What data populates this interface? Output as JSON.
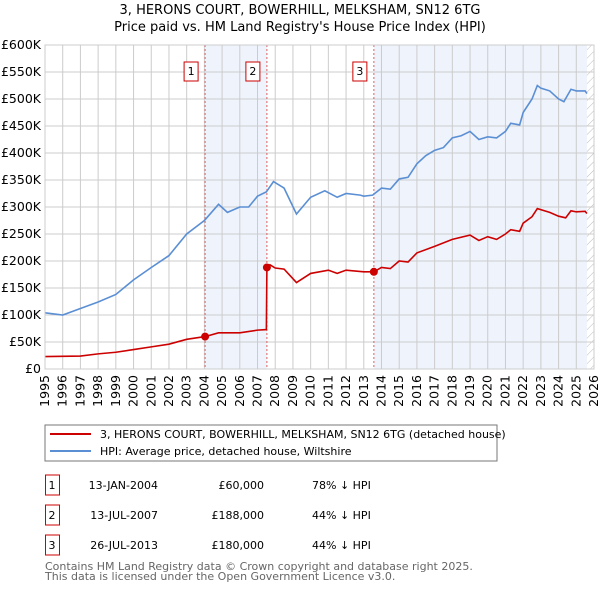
{
  "colors": {
    "property": "#cc0000",
    "hpi": "#5b8fd4",
    "shade": "#eef3fc",
    "marker_border": "#cc0000"
  },
  "chart_data": {
    "type": "line",
    "title": "3, HERONS COURT, BOWERHILL, MELKSHAM, SN12 6TG",
    "subtitle": "Price paid vs. HM Land Registry's House Price Index (HPI)",
    "xlim": [
      1995,
      2026
    ],
    "ylim": [
      0,
      600000
    ],
    "x_ticks": [
      "1995",
      "1996",
      "1997",
      "1998",
      "1999",
      "2000",
      "2001",
      "2002",
      "2003",
      "2004",
      "2005",
      "2006",
      "2007",
      "2008",
      "2009",
      "2010",
      "2011",
      "2012",
      "2013",
      "2014",
      "2015",
      "2016",
      "2017",
      "2018",
      "2019",
      "2020",
      "2021",
      "2022",
      "2023",
      "2024",
      "2025",
      "2026"
    ],
    "y_ticks": [
      {
        "v": 0,
        "label": "£0"
      },
      {
        "v": 50000,
        "label": "£50K"
      },
      {
        "v": 100000,
        "label": "£100K"
      },
      {
        "v": 150000,
        "label": "£150K"
      },
      {
        "v": 200000,
        "label": "£200K"
      },
      {
        "v": 250000,
        "label": "£250K"
      },
      {
        "v": 300000,
        "label": "£300K"
      },
      {
        "v": 350000,
        "label": "£350K"
      },
      {
        "v": 400000,
        "label": "£400K"
      },
      {
        "v": 450000,
        "label": "£450K"
      },
      {
        "v": 500000,
        "label": "£500K"
      },
      {
        "v": 550000,
        "label": "£550K"
      },
      {
        "v": 600000,
        "label": "£600K"
      }
    ],
    "grid": true,
    "data_end": 2025.6,
    "series": [
      {
        "name": "3, HERONS COURT, BOWERHILL, MELKSHAM, SN12 6TG (detached house)",
        "color": "#cc0000",
        "points": [
          [
            1995,
            23
          ],
          [
            1997,
            24
          ],
          [
            1998,
            28
          ],
          [
            1999,
            31
          ],
          [
            2000,
            36
          ],
          [
            2001,
            41
          ],
          [
            2002,
            46
          ],
          [
            2003,
            55
          ],
          [
            2004.04,
            60
          ],
          [
            2004.8,
            67
          ],
          [
            2006,
            67
          ],
          [
            2007,
            72
          ],
          [
            2007.5,
            73
          ],
          [
            2007.53,
            188
          ],
          [
            2007.7,
            193
          ],
          [
            2008,
            187
          ],
          [
            2008.5,
            185
          ],
          [
            2009.2,
            160
          ],
          [
            2010,
            177
          ],
          [
            2011,
            183
          ],
          [
            2011.5,
            177
          ],
          [
            2012,
            183
          ],
          [
            2013,
            180
          ],
          [
            2013.57,
            180
          ],
          [
            2014,
            188
          ],
          [
            2014.5,
            186
          ],
          [
            2015,
            200
          ],
          [
            2015.5,
            198
          ],
          [
            2016,
            215
          ],
          [
            2017,
            227
          ],
          [
            2018,
            240
          ],
          [
            2019,
            248
          ],
          [
            2019.5,
            238
          ],
          [
            2020,
            245
          ],
          [
            2020.5,
            240
          ],
          [
            2021,
            250
          ],
          [
            2021.3,
            258
          ],
          [
            2021.8,
            255
          ],
          [
            2022,
            270
          ],
          [
            2022.5,
            282
          ],
          [
            2022.8,
            297
          ],
          [
            2023.5,
            290
          ],
          [
            2024,
            283
          ],
          [
            2024.4,
            280
          ],
          [
            2024.7,
            293
          ],
          [
            2025,
            291
          ],
          [
            2025.5,
            292
          ],
          [
            2025.6,
            288
          ]
        ]
      },
      {
        "name": "HPI: Average price, detached house, Wiltshire",
        "color": "#5b8fd4",
        "points": [
          [
            1995,
            104
          ],
          [
            1996,
            100
          ],
          [
            1997,
            112
          ],
          [
            1998,
            124
          ],
          [
            1999,
            138
          ],
          [
            2000,
            165
          ],
          [
            2001,
            188
          ],
          [
            2002,
            210
          ],
          [
            2003,
            250
          ],
          [
            2004,
            275
          ],
          [
            2004.8,
            305
          ],
          [
            2005.3,
            290
          ],
          [
            2006,
            300
          ],
          [
            2006.5,
            300
          ],
          [
            2007,
            320
          ],
          [
            2007.5,
            328
          ],
          [
            2007.9,
            347
          ],
          [
            2008.5,
            335
          ],
          [
            2009.2,
            287
          ],
          [
            2010,
            318
          ],
          [
            2010.8,
            330
          ],
          [
            2011.5,
            318
          ],
          [
            2012,
            325
          ],
          [
            2012.8,
            322
          ],
          [
            2013,
            320
          ],
          [
            2013.5,
            322
          ],
          [
            2014,
            335
          ],
          [
            2014.5,
            333
          ],
          [
            2015,
            352
          ],
          [
            2015.5,
            355
          ],
          [
            2016,
            380
          ],
          [
            2016.5,
            395
          ],
          [
            2017,
            405
          ],
          [
            2017.5,
            410
          ],
          [
            2018,
            428
          ],
          [
            2018.5,
            432
          ],
          [
            2019,
            440
          ],
          [
            2019.5,
            425
          ],
          [
            2020,
            430
          ],
          [
            2020.5,
            428
          ],
          [
            2021,
            440
          ],
          [
            2021.3,
            455
          ],
          [
            2021.8,
            452
          ],
          [
            2022,
            475
          ],
          [
            2022.5,
            500
          ],
          [
            2022.8,
            525
          ],
          [
            2023,
            520
          ],
          [
            2023.5,
            515
          ],
          [
            2024,
            500
          ],
          [
            2024.3,
            495
          ],
          [
            2024.7,
            518
          ],
          [
            2025,
            515
          ],
          [
            2025.5,
            515
          ],
          [
            2025.6,
            510
          ]
        ]
      }
    ],
    "y_unit_multiplier": 1000,
    "sales": [
      {
        "label": "1",
        "x": 2004.04,
        "price": 60000,
        "date": "13-JAN-2004",
        "price_text": "£60,000",
        "hpi_text": "78% ↓ HPI"
      },
      {
        "label": "2",
        "x": 2007.53,
        "price": 188000,
        "date": "13-JUL-2007",
        "price_text": "£188,000",
        "hpi_text": "44% ↓ HPI"
      },
      {
        "label": "3",
        "x": 2013.57,
        "price": 180000,
        "date": "26-JUL-2013",
        "price_text": "£180,000",
        "hpi_text": "44% ↓ HPI"
      }
    ],
    "legend": {
      "placement": "below",
      "entries": [
        "3, HERONS COURT, BOWERHILL, MELKSHAM, SN12 6TG (detached house)",
        "HPI: Average price, detached house, Wiltshire"
      ]
    }
  },
  "footer": {
    "line1": "Contains HM Land Registry data © Crown copyright and database right 2025.",
    "line2": "This data is licensed under the Open Government Licence v3.0."
  }
}
